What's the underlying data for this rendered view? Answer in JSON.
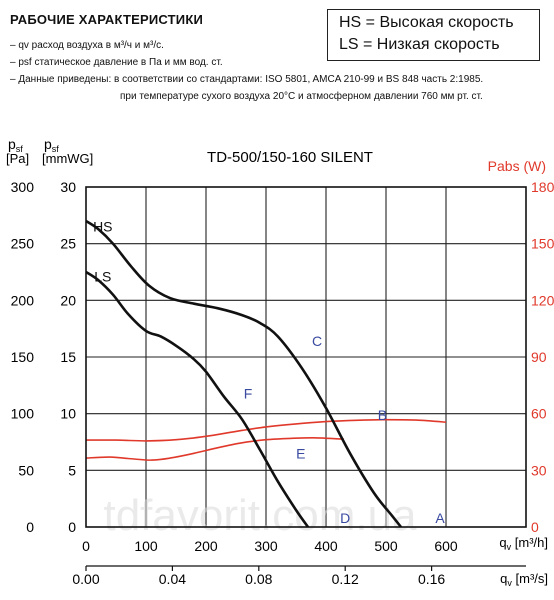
{
  "header": {
    "title": "РАБОЧИЕ ХАРАКТЕРИСТИКИ",
    "notes": [
      "– qv расход воздуха в м³/ч и м³/с.",
      "– psf статическое давление в Па и мм вод. ст.",
      "– Данные приведены: в соответствии со стандартами: ISO 5801, AMCA 210-99 и BS 848 часть 2:1985.",
      "при температуре сухого воздуха 20°C и атмосферном давлении 760 мм рт. ст."
    ]
  },
  "legend": {
    "hs": "HS = Высокая скорость",
    "ls": "LS = Низкая скорость"
  },
  "watermark": "tdfavorit.com.ua",
  "colors": {
    "pressure_curves": "#111111",
    "power_curves": "#e0392b",
    "letters": "#3a4aa0",
    "power_axis": "#e0392b"
  },
  "chart_data": {
    "type": "line",
    "title": "TD-500/150-160 SILENT",
    "x_axes": {
      "m3h": {
        "label": "qv [m³/h]",
        "range": [
          0,
          733.33
        ],
        "ticks": [
          0,
          100,
          200,
          300,
          400,
          500,
          600
        ]
      },
      "m3s": {
        "label": "qv [m³/s]",
        "range": [
          0,
          0.2037
        ],
        "ticks": [
          "0.00",
          "0.04",
          "0.08",
          "0.12",
          "0.16"
        ]
      }
    },
    "y_axes": {
      "pa": {
        "label_top": "psf",
        "label_unit": "[Pa]",
        "range": [
          0,
          300
        ],
        "ticks": [
          0,
          50,
          100,
          150,
          200,
          250,
          300
        ]
      },
      "mmwg": {
        "label_top": "psf",
        "label_unit": "[mmWG]",
        "range": [
          0,
          30
        ],
        "ticks": [
          0,
          5,
          10,
          15,
          20,
          25,
          30
        ]
      },
      "watts": {
        "label": "Pabs (W)",
        "range": [
          0,
          180
        ],
        "ticks": [
          0,
          30,
          60,
          90,
          120,
          150,
          180
        ]
      }
    },
    "grid": true,
    "pressure_series": [
      {
        "name": "HS",
        "axis": "mmwg",
        "points": [
          [
            0,
            27
          ],
          [
            20,
            26.3
          ],
          [
            45,
            25
          ],
          [
            75,
            23
          ],
          [
            105,
            21.3
          ],
          [
            140,
            20.2
          ],
          [
            180,
            19.7
          ],
          [
            220,
            19.3
          ],
          [
            260,
            18.7
          ],
          [
            290,
            18
          ],
          [
            320,
            16.8
          ],
          [
            360,
            14
          ],
          [
            400,
            10.5
          ],
          [
            440,
            6.5
          ],
          [
            480,
            3
          ],
          [
            510,
            1
          ],
          [
            525,
            0
          ]
        ]
      },
      {
        "name": "LS",
        "axis": "mmwg",
        "points": [
          [
            0,
            22.5
          ],
          [
            20,
            21.8
          ],
          [
            45,
            20.5
          ],
          [
            70,
            18.8
          ],
          [
            100,
            17.3
          ],
          [
            125,
            16.8
          ],
          [
            150,
            16
          ],
          [
            180,
            14.8
          ],
          [
            200,
            13.7
          ],
          [
            230,
            11.5
          ],
          [
            260,
            9.5
          ],
          [
            290,
            6.8
          ],
          [
            320,
            4
          ],
          [
            350,
            1.5
          ],
          [
            370,
            0
          ]
        ]
      }
    ],
    "power_series": [
      {
        "axis": "watts",
        "points": [
          [
            0,
            46
          ],
          [
            50,
            46
          ],
          [
            100,
            45.6
          ],
          [
            150,
            46.2
          ],
          [
            200,
            48
          ],
          [
            250,
            50.6
          ],
          [
            300,
            53
          ],
          [
            350,
            54.6
          ],
          [
            400,
            55.8
          ],
          [
            450,
            56.5
          ],
          [
            500,
            56.8
          ],
          [
            550,
            56.6
          ],
          [
            600,
            55.5
          ]
        ]
      },
      {
        "axis": "watts",
        "points": [
          [
            0,
            36.5
          ],
          [
            40,
            37
          ],
          [
            80,
            36
          ],
          [
            110,
            35.4
          ],
          [
            140,
            36.5
          ],
          [
            180,
            39
          ],
          [
            220,
            42
          ],
          [
            260,
            44.6
          ],
          [
            300,
            46.2
          ],
          [
            340,
            46.9
          ],
          [
            380,
            47.2
          ],
          [
            430,
            46.5
          ]
        ]
      }
    ],
    "annotations": [
      {
        "text": "HS",
        "x": 28,
        "y": 26.5,
        "axis": "mmwg"
      },
      {
        "text": "LS",
        "x": 28,
        "y": 22.1,
        "axis": "mmwg"
      },
      {
        "text": "C",
        "x": 385,
        "y": 16.4,
        "axis": "mmwg"
      },
      {
        "text": "F",
        "x": 270,
        "y": 11.8,
        "axis": "mmwg"
      },
      {
        "text": "B",
        "x": 494,
        "y": 9.9,
        "axis": "mmwg"
      },
      {
        "text": "E",
        "x": 358,
        "y": 6.5,
        "axis": "mmwg"
      },
      {
        "text": "D",
        "x": 432,
        "y": 0.8,
        "axis": "mmwg"
      },
      {
        "text": "A",
        "x": 590,
        "y": 0.8,
        "axis": "mmwg"
      }
    ]
  }
}
